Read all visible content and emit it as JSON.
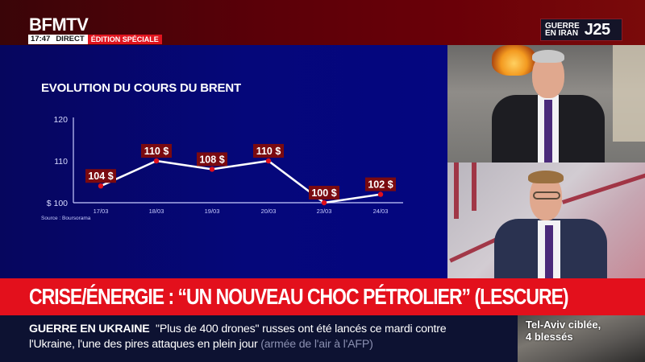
{
  "header": {
    "channel_logo": "BFMTV",
    "time": "17:47",
    "live_label": "DIRECT",
    "edition_label": "ÉDITION SPÉCIALE",
    "topic_badge": {
      "line1": "GUERRE",
      "line2": "EN IRAN",
      "day": "J25"
    }
  },
  "chart_panel": {
    "title": "EVOLUTION DU COURS DU BRENT",
    "source": "Source : Boursorama"
  },
  "chart_data": {
    "type": "line",
    "title": "EVOLUTION DU COURS DU BRENT",
    "categories": [
      "17/03",
      "18/03",
      "19/03",
      "20/03",
      "23/03",
      "24/03"
    ],
    "values": [
      104,
      110,
      108,
      110,
      100,
      102
    ],
    "data_labels": [
      "104 $",
      "110 $",
      "108 $",
      "110 $",
      "100 $",
      "102 $"
    ],
    "y_ticks": [
      "$ 100",
      "110",
      "120"
    ],
    "ylim": [
      100,
      120
    ],
    "xlabel": "",
    "ylabel": "$",
    "grid": false,
    "legend": "none",
    "source": "Source : Boursorama",
    "colors": {
      "line": "#ffffff",
      "marker": "#e0101c",
      "label_bg": "#7a0a10",
      "axis": "#c8ccff"
    }
  },
  "headline": "CRISE/ÉNERGIE : “UN NOUVEAU CHOC PÉTROLIER” (LESCURE)",
  "ticker": {
    "topic": "GUERRE EN UKRAINE",
    "text": "\"Plus de 400 drones\" russes ont été lancés ce mardi contre l'Ukraine, l'une des pires attaques en plein jour",
    "attribution": "(armée de l'air à l'AFP)"
  },
  "side_thumbnail": {
    "line1": "Tel-Aviv ciblée,",
    "line2": "4 blessés"
  },
  "colors": {
    "brand_red": "#e3101c",
    "header_dark_red": "#5a0008",
    "chart_background": "#05077a",
    "ticker_background": "#0d1232"
  }
}
